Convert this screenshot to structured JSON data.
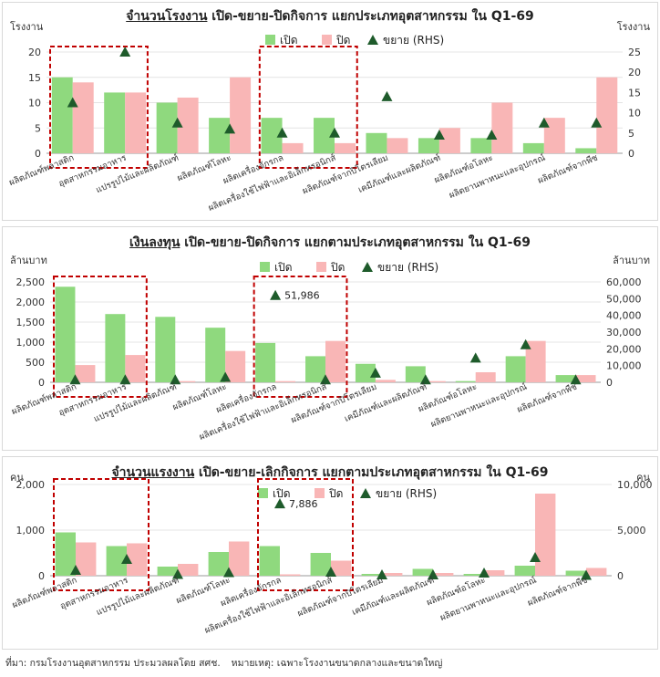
{
  "footer": {
    "source": "ที่มา: กรมโรงงานอุตสาหกรรม ประมวลผลโดย สศช.",
    "note": "หมายเหตุ: เฉพาะโรงงานขนาดกลางและขนาดใหญ่"
  },
  "colors": {
    "open": "#8fd97e",
    "close": "#f9b6b6",
    "expand": "#1e5b2b",
    "highlight": "#c00000"
  },
  "chart_data": [
    {
      "type": "bar",
      "title_underlined": "จำนวนโรงงาน",
      "title_rest": " เปิด-ขยาย-ปิดกิจการ แยกประเภทอุตสาหกรรม ใน Q1-69",
      "ylabel_left": "โรงงาน",
      "ylabel_right": "โรงงาน",
      "ylim_left": [
        0,
        20
      ],
      "yticks_left": [
        "0",
        "5",
        "10",
        "15",
        "20"
      ],
      "ylim_right": [
        0,
        25
      ],
      "yticks_right": [
        "0",
        "5",
        "10",
        "15",
        "20",
        "25"
      ],
      "legend": [
        "เปิด",
        "ปิด",
        "ขยาย (RHS)"
      ],
      "categories": [
        "ผลิตภัณฑ์พลาสติก",
        "อุตสาหกรรมอาหาร",
        "แปรรูปไม้และผลิตภัณฑ์",
        "ผลิตภัณฑ์โลหะ",
        "ผลิตเครื่องจักรกล",
        "ผลิตเครื่องใช้ไฟฟ้าและอิเล็กทรอนิกส์",
        "ผลิตภัณฑ์จากปิโตรเลียม",
        "เคมีภัณฑ์และผลิตภัณฑ์",
        "ผลิตภัณฑ์อโลหะ",
        "ผลิตยานพาหนะและอุปกรณ์",
        "ผลิตภัณฑ์จากพืช"
      ],
      "series": [
        {
          "name": "เปิด",
          "values": [
            15,
            12,
            10,
            7,
            7,
            7,
            4,
            3,
            3,
            2,
            1
          ]
        },
        {
          "name": "ปิด",
          "values": [
            14,
            12,
            11,
            15,
            2,
            2,
            3,
            5,
            10,
            7,
            15
          ]
        },
        {
          "name": "ขยาย (RHS)",
          "axis": "right",
          "values": [
            12.5,
            25,
            7.5,
            6,
            5,
            5,
            14,
            4.5,
            4.5,
            7.5,
            7.5
          ]
        }
      ],
      "highlight_groups": [
        [
          0,
          1
        ],
        [
          4,
          5
        ]
      ],
      "annotations": []
    },
    {
      "type": "bar",
      "title_underlined": "เงินลงทุน",
      "title_rest": " เปิด-ขยาย-ปิดกิจการ แยกตามประเภทอุตสาหกรรม ใน Q1-69",
      "ylabel_left": "ล้านบาท",
      "ylabel_right": "ล้านบาท",
      "ylim_left": [
        0,
        2500
      ],
      "yticks_left": [
        "0",
        "500",
        "1,000",
        "1,500",
        "2,000",
        "2,500"
      ],
      "ylim_right": [
        0,
        60000
      ],
      "yticks_right": [
        "0",
        "10,000",
        "20,000",
        "30,000",
        "40,000",
        "50,000",
        "60,000"
      ],
      "legend": [
        "เปิด",
        "ปิด",
        "ขยาย (RHS)"
      ],
      "categories": [
        "ผลิตภัณฑ์พลาสติก",
        "อุตสาหกรรมอาหาร",
        "แปรรูปไม้และผลิตภัณฑ์",
        "ผลิตภัณฑ์โลหะ",
        "ผลิตเครื่องจักรกล",
        "ผลิตเครื่องใช้ไฟฟ้าและอิเล็กทรอนิกส์",
        "ผลิตภัณฑ์จากปิโตรเลียม",
        "เคมีภัณฑ์และผลิตภัณฑ์",
        "ผลิตภัณฑ์อโลหะ",
        "ผลิตยานพาหนะและอุปกรณ์",
        "ผลิตภัณฑ์จากพืช"
      ],
      "series": [
        {
          "name": "เปิด",
          "values": [
            2380,
            1700,
            1630,
            1360,
            980,
            650,
            460,
            400,
            30,
            650,
            180
          ]
        },
        {
          "name": "ปิด",
          "values": [
            430,
            680,
            30,
            780,
            30,
            1030,
            60,
            30,
            250,
            1030,
            180
          ]
        },
        {
          "name": "ขยาย (RHS)",
          "axis": "right",
          "values": [
            1500,
            1500,
            1500,
            3000,
            51986,
            1500,
            5500,
            1500,
            14500,
            22500,
            1500
          ]
        }
      ],
      "highlight_groups": [
        [
          0,
          1
        ],
        [
          4,
          5
        ]
      ],
      "annotations": [
        {
          "index": 4,
          "text": "51,986"
        }
      ]
    },
    {
      "type": "bar",
      "title_underlined": "จำนวนแรงงาน",
      "title_rest": " เปิด-ขยาย-เลิกกิจการ แยกตามประเภทอุตสาหกรรม ใน Q1-69",
      "ylabel_left": "คน",
      "ylabel_right": "คน",
      "ylim_left": [
        0,
        2000
      ],
      "yticks_left": [
        "0",
        "1,000",
        "2,000"
      ],
      "ylim_right": [
        0,
        10000
      ],
      "yticks_right": [
        "0",
        "5,000",
        "10,000"
      ],
      "legend": [
        "เปิด",
        "ปิด",
        "ขยาย (RHS)"
      ],
      "categories": [
        "ผลิตภัณฑ์พลาสติก",
        "อุตสาหกรรมอาหาร",
        "แปรรูปไม้และผลิตภัณฑ์",
        "ผลิตภัณฑ์โลหะ",
        "ผลิตเครื่องจักรกล",
        "ผลิตเครื่องใช้ไฟฟ้าและอิเล็กทรอนิกส์",
        "ผลิตภัณฑ์จากปิโตรเลียม",
        "เคมีภัณฑ์และผลิตภัณฑ์",
        "ผลิตภัณฑ์อโลหะ",
        "ผลิตยานพาหนะและอุปกรณ์",
        "ผลิตภัณฑ์จากพืช"
      ],
      "series": [
        {
          "name": "เปิด",
          "values": [
            950,
            650,
            200,
            520,
            650,
            500,
            40,
            150,
            40,
            220,
            110
          ]
        },
        {
          "name": "ปิด",
          "values": [
            730,
            710,
            260,
            750,
            30,
            330,
            60,
            60,
            120,
            1800,
            170
          ]
        },
        {
          "name": "ขยาย (RHS)",
          "axis": "right",
          "values": [
            600,
            1800,
            150,
            350,
            7886,
            400,
            100,
            100,
            300,
            2000,
            50
          ]
        }
      ],
      "highlight_groups": [
        [
          0,
          1
        ],
        [
          4,
          5
        ]
      ],
      "annotations": [
        {
          "index": 4,
          "text": "7,886"
        }
      ]
    }
  ]
}
